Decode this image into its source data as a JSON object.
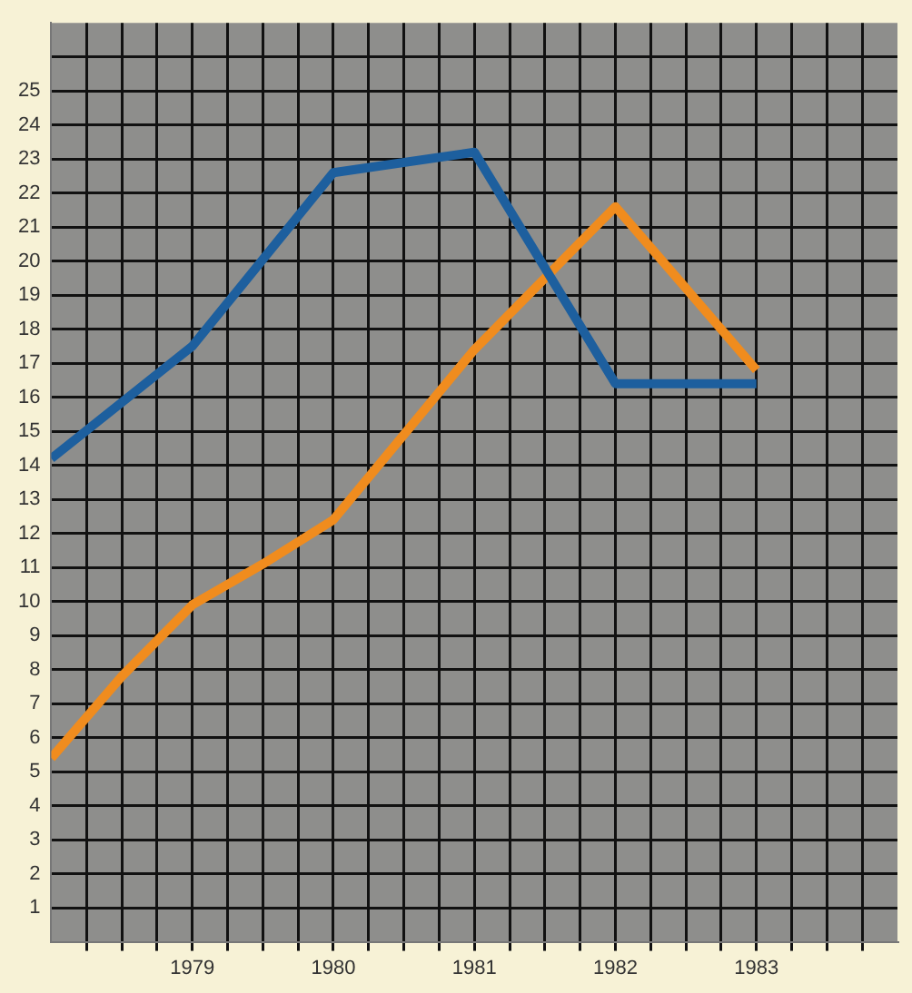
{
  "chart_data": {
    "type": "line",
    "x": [
      1978,
      1979,
      1980,
      1981,
      1982,
      1983
    ],
    "series": [
      {
        "color": "#1d5f9e",
        "values": [
          14.2,
          17.5,
          22.6,
          23.2,
          16.4,
          16.4
        ]
      },
      {
        "color": "#f08c1e",
        "x": [
          1978,
          1978.5,
          1979,
          1979.5,
          1980,
          1981,
          1982,
          1983
        ],
        "values": [
          5.4,
          7.8,
          9.9,
          11.1,
          12.4,
          17.4,
          21.6,
          16.8
        ]
      }
    ],
    "xlim": [
      1978,
      1984
    ],
    "xticks": [
      {
        "value": 1978.25,
        "label": null
      },
      {
        "value": 1978.5,
        "label": null
      },
      {
        "value": 1978.75,
        "label": null
      },
      1979,
      {
        "value": 1979.25,
        "label": null
      },
      {
        "value": 1979.5,
        "label": null
      },
      {
        "value": 1979.75,
        "label": null
      },
      1980,
      {
        "value": 1980.25,
        "label": null
      },
      {
        "value": 1980.5,
        "label": null
      },
      {
        "value": 1980.75,
        "label": null
      },
      1981,
      {
        "value": 1981.25,
        "label": null
      },
      {
        "value": 1981.5,
        "label": null
      },
      {
        "value": 1981.75,
        "label": null
      },
      1982,
      {
        "value": 1982.25,
        "label": null
      },
      {
        "value": 1982.5,
        "label": null
      },
      {
        "value": 1982.75,
        "label": null
      },
      1983,
      {
        "value": 1983.25,
        "label": null
      },
      {
        "value": 1983.5,
        "label": null
      },
      {
        "value": 1983.75,
        "label": null
      }
    ],
    "ylim": [
      0,
      27
    ],
    "yticks": [
      1,
      2,
      3,
      4,
      5,
      6,
      7,
      8,
      9,
      10,
      11,
      12,
      13,
      14,
      15,
      16,
      17,
      18,
      19,
      20,
      21,
      22,
      23,
      24,
      25,
      {
        "value": 26,
        "label": null
      }
    ],
    "grid": true,
    "legend": false,
    "marker": "none",
    "line_style": "solid"
  }
}
